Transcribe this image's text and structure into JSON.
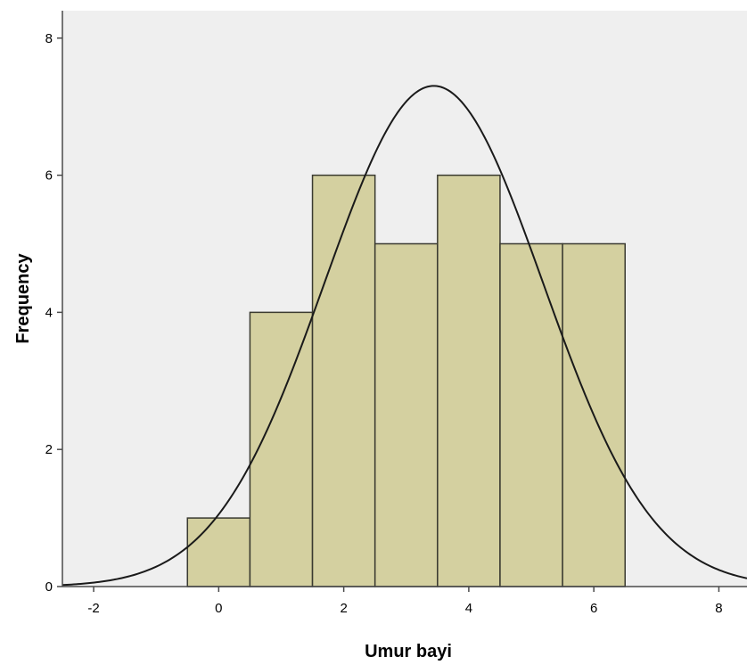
{
  "chart_data": {
    "type": "bar",
    "subtype": "histogram",
    "xlabel": "Umur bayi",
    "ylabel": "Frequency",
    "xlim": [
      -2.5,
      8.45
    ],
    "ylim": [
      0,
      8.4
    ],
    "x_ticks": [
      -2,
      0,
      2,
      4,
      6,
      8
    ],
    "y_ticks": [
      0,
      2,
      4,
      6,
      8
    ],
    "bins": [
      {
        "x_start": -0.5,
        "x_end": 0.5,
        "count": 1
      },
      {
        "x_start": 0.5,
        "x_end": 1.5,
        "count": 4
      },
      {
        "x_start": 1.5,
        "x_end": 2.5,
        "count": 6
      },
      {
        "x_start": 2.5,
        "x_end": 3.5,
        "count": 5
      },
      {
        "x_start": 3.5,
        "x_end": 4.5,
        "count": 6
      },
      {
        "x_start": 4.5,
        "x_end": 5.5,
        "count": 5
      },
      {
        "x_start": 5.5,
        "x_end": 6.5,
        "count": 5
      }
    ],
    "normal_curve": {
      "mean": 3.44,
      "std_dev": 1.748,
      "n": 32,
      "bin_width": 1
    },
    "grid": false,
    "colors": {
      "background": "#efefef",
      "bar_fill": "#d4d0a0",
      "bar_stroke": "#3a3a30",
      "curve": "#1a1a1a",
      "axis": "#4a4a4a"
    }
  }
}
